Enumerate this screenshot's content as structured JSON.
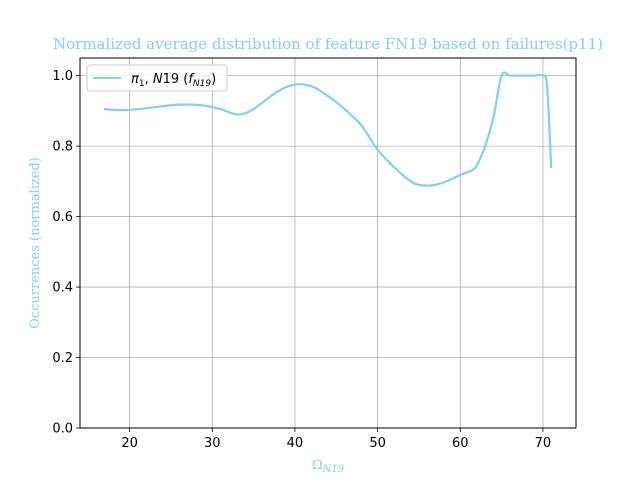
{
  "chart_data": {
    "type": "line",
    "title": "Normalized average distribution of feature FN19 based on failures(p11)",
    "xlabel_base": "Ω",
    "xlabel_sub": "N19",
    "ylabel": "Occurrences (normalized)",
    "xlim": [
      14,
      74
    ],
    "ylim": [
      0,
      1.05
    ],
    "xticks": [
      20,
      30,
      40,
      50,
      60,
      70
    ],
    "yticks": [
      0.0,
      0.2,
      0.4,
      0.6,
      0.8,
      1.0
    ],
    "ytick_labels": [
      "0.0",
      "0.2",
      "0.4",
      "0.6",
      "0.8",
      "1.0"
    ],
    "grid": true,
    "legend_position": "top-left",
    "colors": {
      "series": "#87ceeb",
      "title": "#87ceeb",
      "axis_label": "#87ceeb"
    },
    "series": [
      {
        "name": "π1, N19 (fN19)",
        "legend": {
          "pi": "π",
          "pi_sub": "1",
          "mid": ", ",
          "n": "N",
          "n_num": "19",
          "open": " (",
          "f": "f",
          "f_sub": "N19",
          "close": ")"
        },
        "x": [
          17,
          19,
          21,
          23,
          25,
          27,
          29,
          31,
          32,
          33,
          34,
          35,
          36,
          37,
          38,
          39,
          40,
          41,
          42,
          43,
          44,
          45,
          46,
          48,
          50,
          52,
          54,
          55,
          56,
          57,
          58,
          59,
          60,
          61,
          61.5,
          62,
          63,
          64,
          65,
          66,
          67,
          68,
          69,
          70,
          70.5,
          71
        ],
        "y": [
          0.905,
          0.902,
          0.905,
          0.91,
          0.916,
          0.918,
          0.915,
          0.905,
          0.896,
          0.89,
          0.893,
          0.905,
          0.922,
          0.94,
          0.956,
          0.968,
          0.975,
          0.975,
          0.97,
          0.958,
          0.942,
          0.925,
          0.905,
          0.86,
          0.79,
          0.74,
          0.7,
          0.69,
          0.688,
          0.69,
          0.697,
          0.707,
          0.718,
          0.727,
          0.733,
          0.745,
          0.8,
          0.88,
          1.0,
          1.0,
          1.0,
          1.0,
          1.0,
          1.0,
          0.97,
          0.74
        ]
      }
    ]
  }
}
